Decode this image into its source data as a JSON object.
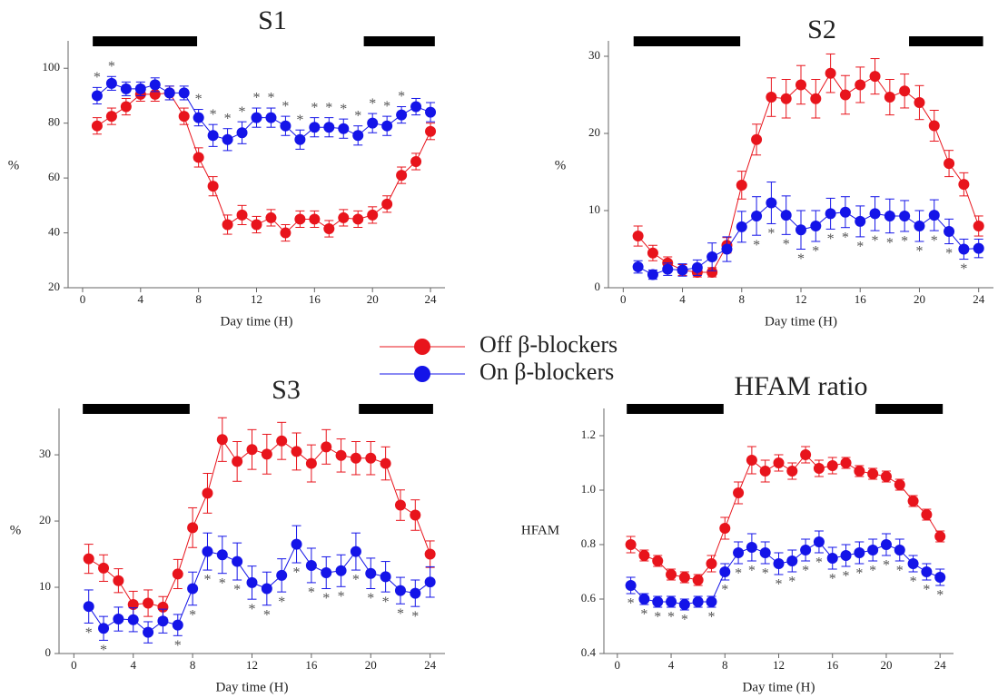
{
  "chart_data": [
    {
      "type": "line",
      "title": "S1",
      "xlabel": "Day time (H)",
      "ylabel": "%",
      "xlim": [
        -1,
        25
      ],
      "xticks": [
        0,
        4,
        8,
        12,
        16,
        20,
        24
      ],
      "ylim": [
        20,
        110
      ],
      "yticks": [
        20,
        40,
        60,
        80,
        100
      ],
      "x": [
        1,
        2,
        3,
        4,
        5,
        6,
        7,
        8,
        9,
        10,
        11,
        12,
        13,
        14,
        15,
        16,
        17,
        18,
        19,
        20,
        21,
        22,
        23,
        24
      ],
      "series": [
        {
          "name": "Off β-blockers",
          "color": "#e8141c",
          "values": [
            79,
            82.5,
            86,
            90.5,
            90.5,
            91,
            82.5,
            67.5,
            57,
            43,
            46.5,
            43,
            45.5,
            40,
            45,
            45,
            41.5,
            45.5,
            45,
            46.5,
            50.5,
            61,
            66,
            77
          ],
          "errors": [
            3,
            3,
            3,
            2.5,
            2.5,
            2.5,
            3,
            3.5,
            3.5,
            3.5,
            3.5,
            3,
            3,
            3,
            3,
            3,
            3,
            3,
            3,
            3,
            3,
            3,
            3,
            3
          ]
        },
        {
          "name": "On β-blockers",
          "color": "#1414e8",
          "values": [
            90,
            94.5,
            92.5,
            92.5,
            94,
            91,
            91,
            82,
            75.5,
            74,
            76.5,
            82,
            82,
            79,
            74,
            78.5,
            78.5,
            78,
            75.5,
            80,
            79,
            83,
            86,
            84
          ],
          "errors": [
            3,
            2.5,
            2.5,
            2.5,
            2.5,
            2.5,
            2.5,
            3,
            4,
            4,
            4,
            3.5,
            3.5,
            3.5,
            3.5,
            3.5,
            3.5,
            3.5,
            3.5,
            3.5,
            3.5,
            3,
            3,
            3.5
          ]
        }
      ],
      "night_periods": [
        [
          0.7,
          7.9
        ],
        [
          19.4,
          24.3
        ]
      ],
      "significance_marker": "*",
      "significant_x": [
        1,
        2,
        8,
        9,
        10,
        11,
        12,
        13,
        14,
        15,
        16,
        17,
        18,
        19,
        20,
        21,
        22
      ]
    },
    {
      "type": "line",
      "title": "S2",
      "xlabel": "Day time (H)",
      "ylabel": "%",
      "xlim": [
        -1,
        25
      ],
      "xticks": [
        0,
        4,
        8,
        12,
        16,
        20,
        24
      ],
      "ylim": [
        0,
        32
      ],
      "yticks": [
        0,
        10,
        20,
        30
      ],
      "x": [
        1,
        2,
        3,
        4,
        5,
        6,
        7,
        8,
        9,
        10,
        11,
        12,
        13,
        14,
        15,
        16,
        17,
        18,
        19,
        20,
        21,
        22,
        23,
        24
      ],
      "series": [
        {
          "color": "#e8141c",
          "values": [
            6.7,
            4.5,
            3.2,
            2.3,
            2,
            2,
            5.5,
            13.3,
            19.2,
            24.7,
            24.5,
            26.3,
            24.5,
            27.8,
            25,
            26.3,
            27.4,
            24.7,
            25.5,
            24,
            21,
            16.1,
            13.4,
            8
          ],
          "errors": [
            1.3,
            1,
            0.8,
            0.7,
            0.6,
            0.6,
            1,
            1.8,
            2,
            2.5,
            2.5,
            2.5,
            2.5,
            2.5,
            2.5,
            2.3,
            2.3,
            2.3,
            2.2,
            2.2,
            2,
            1.7,
            1.5,
            1.3
          ]
        },
        {
          "color": "#1414e8",
          "values": [
            2.7,
            1.7,
            2.4,
            2.3,
            2.6,
            4,
            5,
            7.9,
            9.3,
            11,
            9.4,
            7.5,
            8,
            9.6,
            9.8,
            8.6,
            9.6,
            9.3,
            9.3,
            8,
            9.4,
            7.3,
            5,
            5.1
          ],
          "errors": [
            0.8,
            0.6,
            0.8,
            0.8,
            1,
            1.8,
            1.6,
            2,
            2.5,
            2.7,
            2.5,
            2.5,
            2,
            2,
            2,
            2,
            2.2,
            2.2,
            2,
            2,
            2,
            1.6,
            1.3,
            1.2
          ]
        }
      ],
      "night_periods": [
        [
          0.7,
          7.9
        ],
        [
          19.3,
          24.3
        ]
      ],
      "significance_marker": "*",
      "significant_x": [
        9,
        10,
        11,
        12,
        13,
        14,
        15,
        16,
        17,
        18,
        19,
        20,
        21,
        22,
        23
      ]
    },
    {
      "type": "line",
      "title": "S3",
      "xlabel": "Day time (H)",
      "ylabel": "%",
      "xlim": [
        -1,
        25
      ],
      "xticks": [
        0,
        4,
        8,
        12,
        16,
        20,
        24
      ],
      "ylim": [
        0,
        37
      ],
      "yticks": [
        0,
        10,
        20,
        30
      ],
      "x": [
        1,
        2,
        3,
        4,
        5,
        6,
        7,
        8,
        9,
        10,
        11,
        12,
        13,
        14,
        15,
        16,
        17,
        18,
        19,
        20,
        21,
        22,
        23,
        24
      ],
      "series": [
        {
          "color": "#e8141c",
          "values": [
            14.3,
            12.9,
            11,
            7.4,
            7.6,
            7,
            12,
            19,
            24.2,
            32.3,
            29,
            30.8,
            30.1,
            32.1,
            30.5,
            28.7,
            31.2,
            29.9,
            29.5,
            29.5,
            28.7,
            22.4,
            20.9,
            15
          ],
          "errors": [
            2.2,
            2,
            1.8,
            2,
            2,
            1.6,
            2.2,
            3,
            3,
            3.3,
            3,
            3,
            3,
            2.8,
            2.8,
            2.8,
            2.6,
            2.5,
            2.5,
            2.5,
            2.5,
            2.3,
            2.3,
            2
          ]
        },
        {
          "color": "#1414e8",
          "values": [
            7.1,
            3.8,
            5.2,
            5.1,
            3.2,
            4.9,
            4.3,
            9.8,
            15.4,
            14.9,
            13.9,
            10.7,
            9.8,
            11.8,
            16.5,
            13.3,
            12.2,
            12.5,
            15.4,
            12.1,
            11.6,
            9.5,
            9.1,
            10.8
          ],
          "errors": [
            2.5,
            1.8,
            1.8,
            1.8,
            1.6,
            1.8,
            1.6,
            2.5,
            2.8,
            2.8,
            2.8,
            2.5,
            2.5,
            2.5,
            2.8,
            2.6,
            2.4,
            2.4,
            2.8,
            2.3,
            2.3,
            2,
            2,
            2.3
          ]
        }
      ],
      "night_periods": [
        [
          0.6,
          7.8
        ],
        [
          19.2,
          24.2
        ]
      ],
      "significance_marker": "*",
      "significant_x": [
        1,
        2,
        7,
        8,
        9,
        10,
        11,
        12,
        13,
        14,
        15,
        16,
        17,
        18,
        19,
        20,
        21,
        22,
        23
      ]
    },
    {
      "type": "line",
      "title": "HFAM ratio",
      "xlabel": "Day time (H)",
      "ylabel": "HFAM",
      "xlim": [
        -1,
        25
      ],
      "xticks": [
        0,
        4,
        8,
        12,
        16,
        20,
        24
      ],
      "ylim": [
        0.4,
        1.3
      ],
      "yticks": [
        0.4,
        0.6,
        0.8,
        {
          "value": 1,
          "label": "1.0"
        },
        1.2
      ],
      "x": [
        1,
        2,
        3,
        4,
        5,
        6,
        7,
        8,
        9,
        10,
        11,
        12,
        13,
        14,
        15,
        16,
        17,
        18,
        19,
        20,
        21,
        22,
        23,
        24
      ],
      "series": [
        {
          "color": "#e8141c",
          "values": [
            0.8,
            0.76,
            0.74,
            0.69,
            0.68,
            0.67,
            0.73,
            0.86,
            0.99,
            1.11,
            1.07,
            1.1,
            1.07,
            1.13,
            1.08,
            1.09,
            1.1,
            1.07,
            1.06,
            1.05,
            1.02,
            0.96,
            0.91,
            0.83
          ],
          "errors": [
            0.03,
            0.02,
            0.02,
            0.02,
            0.02,
            0.02,
            0.03,
            0.04,
            0.04,
            0.05,
            0.04,
            0.03,
            0.03,
            0.03,
            0.03,
            0.03,
            0.02,
            0.02,
            0.02,
            0.02,
            0.02,
            0.02,
            0.02,
            0.02
          ]
        },
        {
          "color": "#1414e8",
          "values": [
            0.65,
            0.6,
            0.59,
            0.59,
            0.58,
            0.59,
            0.59,
            0.7,
            0.77,
            0.79,
            0.77,
            0.73,
            0.74,
            0.78,
            0.81,
            0.75,
            0.76,
            0.77,
            0.78,
            0.8,
            0.78,
            0.73,
            0.7,
            0.68
          ],
          "errors": [
            0.03,
            0.02,
            0.02,
            0.02,
            0.02,
            0.02,
            0.02,
            0.03,
            0.04,
            0.05,
            0.04,
            0.04,
            0.04,
            0.04,
            0.04,
            0.04,
            0.04,
            0.04,
            0.04,
            0.04,
            0.04,
            0.03,
            0.03,
            0.03
          ]
        }
      ],
      "night_periods": [
        [
          0.7,
          7.9
        ],
        [
          19.2,
          24.2
        ]
      ],
      "significance_marker": "*",
      "significant_x": [
        1,
        2,
        3,
        4,
        5,
        7,
        8,
        9,
        10,
        11,
        12,
        13,
        14,
        15,
        16,
        17,
        18,
        19,
        20,
        21,
        22,
        23,
        24
      ]
    }
  ]
}
